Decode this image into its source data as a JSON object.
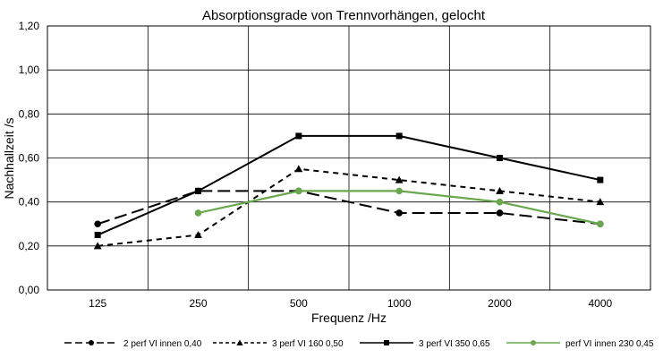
{
  "chart_data": {
    "type": "line",
    "title": "Absorptionsgrade von Trennvorhängen, gelocht",
    "xlabel": "Frequenz /Hz",
    "ylabel": "Nachhallzeit /s",
    "categories": [
      "125",
      "250",
      "500",
      "1000",
      "2000",
      "4000"
    ],
    "ylim": [
      0,
      1.2
    ],
    "yticks": [
      "0,00",
      "0,20",
      "0,40",
      "0,60",
      "0,80",
      "1,00",
      "1,20"
    ],
    "grid": true,
    "legend_position": "bottom",
    "series": [
      {
        "name": "2 perf VI innen 0,40",
        "values": [
          0.3,
          0.45,
          0.45,
          0.35,
          0.35,
          0.3
        ],
        "color": "#000000",
        "dash": "long-dash",
        "marker": "circle"
      },
      {
        "name": "3 perf VI 160 0,50",
        "values": [
          0.2,
          0.25,
          0.55,
          0.5,
          0.45,
          0.4
        ],
        "color": "#000000",
        "dash": "short-dash",
        "marker": "triangle"
      },
      {
        "name": "3 perf VI 350 0,65",
        "values": [
          0.25,
          0.45,
          0.7,
          0.7,
          0.6,
          0.5
        ],
        "color": "#000000",
        "dash": "solid",
        "marker": "square"
      },
      {
        "name": "perf VI innen 230 0,45",
        "values": [
          null,
          0.35,
          0.45,
          0.45,
          0.4,
          0.3
        ],
        "color": "#6aa84f",
        "dash": "solid",
        "marker": "circle"
      }
    ]
  }
}
